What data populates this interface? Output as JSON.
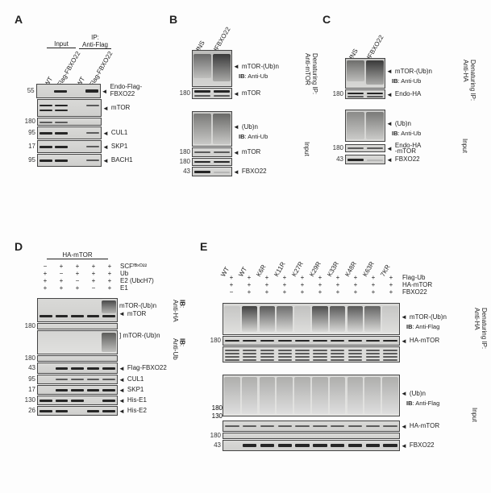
{
  "labels": {
    "A": "A",
    "B": "B",
    "C": "C",
    "D": "D",
    "E": "E"
  },
  "common": {
    "input": "Input",
    "ip_flag": "IP:\nAnti-Flag",
    "arrow": "◄"
  },
  "panelA": {
    "lanes": {
      "wt": "WT",
      "flag": "Flag-FBXO22"
    },
    "mw": [
      "55",
      "",
      "180",
      "95",
      "17",
      "95"
    ],
    "targets": [
      "Endo-Flag-FBXO22",
      "mTOR",
      "",
      "CUL1",
      "SKP1",
      "BACH1"
    ]
  },
  "panelB": {
    "headers": [
      "dNS",
      "dFBXO22"
    ],
    "mw": [
      "180",
      "",
      "",
      "180",
      "",
      "180",
      "43"
    ],
    "targets_top": [
      "mTOR-(Ub)n",
      "IB: Anti-Ub",
      "mTOR"
    ],
    "targets_bot": [
      "(Ub)n",
      "IB: Anti-Ub",
      "mTOR",
      "FBXO22"
    ],
    "vert_top": "Denaturing IP:\nAnti-mTOR",
    "vert_bot": "Input"
  },
  "panelC": {
    "headers": [
      "dNS",
      "dFBXO22"
    ],
    "mw": [
      "180",
      "",
      "",
      "",
      "180",
      "",
      "43"
    ],
    "targets_top": [
      "mTOR-(Ub)n",
      "IB: Anti-Ub",
      "Endo-HA"
    ],
    "targets_bot": [
      "(Ub)n",
      "IB: Anti-Ub",
      "Endo-HA",
      "-mTOR",
      "FBXO22"
    ],
    "vert_top": "Denaturing IP:\nAnti-HA",
    "vert_bot": "Input"
  },
  "panelD": {
    "hdr": "HA-mTOR",
    "treatments": [
      {
        "name": "SCFᶠᴮˣᴼ²²",
        "vals": [
          "−",
          "+",
          "+",
          "+",
          "+"
        ]
      },
      {
        "name": "Ub",
        "vals": [
          "+",
          "−",
          "+",
          "+",
          "+"
        ]
      },
      {
        "name": "E2 (UbcH7)",
        "vals": [
          "+",
          "+",
          "−",
          "+",
          "+"
        ]
      },
      {
        "name": "E1",
        "vals": [
          "+",
          "+",
          "+",
          "−",
          "+"
        ]
      }
    ],
    "mw": [
      "",
      "180",
      "",
      "180",
      "43",
      "95",
      "17",
      "130",
      "26"
    ],
    "targets": [
      "mTOR-(Ub)n",
      "mTOR",
      "mTOR-(Ub)n",
      "Flag-FBXO22",
      "CUL1",
      "SKP1",
      "His-E1",
      "His-E2"
    ],
    "ib1": "IB:\nAnti-HA",
    "ib2": "IB:\nAnti-Ub"
  },
  "panelE": {
    "headers": [
      "WT",
      "WT",
      "K6R",
      "K11R",
      "K27R",
      "K29R",
      "K33R",
      "K48R",
      "K63R",
      "7KR"
    ],
    "treatments": [
      {
        "name": "Flag-Ub",
        "vals": [
          "+",
          "+",
          "+",
          "+",
          "+",
          "+",
          "+",
          "+",
          "+",
          "+"
        ]
      },
      {
        "name": "HA-mTOR",
        "vals": [
          "+",
          "+",
          "+",
          "+",
          "+",
          "+",
          "+",
          "+",
          "+",
          "+"
        ]
      },
      {
        "name": "FBXO22",
        "vals": [
          "−",
          "+",
          "+",
          "+",
          "+",
          "+",
          "+",
          "+",
          "+",
          "+"
        ]
      }
    ],
    "mw": [
      "",
      "180",
      "",
      "",
      "",
      "180",
      "130",
      "",
      "180",
      "",
      "43"
    ],
    "targets_top": [
      "mTOR-(Ub)n",
      "IB: Anti-Flag",
      "HA-mTOR"
    ],
    "targets_bot": [
      "(Ub)n",
      "IB: Anti-Flag",
      "HA-mTOR",
      "FBXO22"
    ],
    "vert_top": "Denaturing IP:\nAnti-HA",
    "vert_bot": "Input"
  },
  "style": {
    "bg": "#fdfdfd",
    "border": "#444444",
    "band_dark": "#262626",
    "band_med": "#5b5b5b",
    "band_light": "#8c8c8c",
    "band_faint": "#b7b7b6",
    "font_size_label": 14,
    "font_size_small": 8
  }
}
